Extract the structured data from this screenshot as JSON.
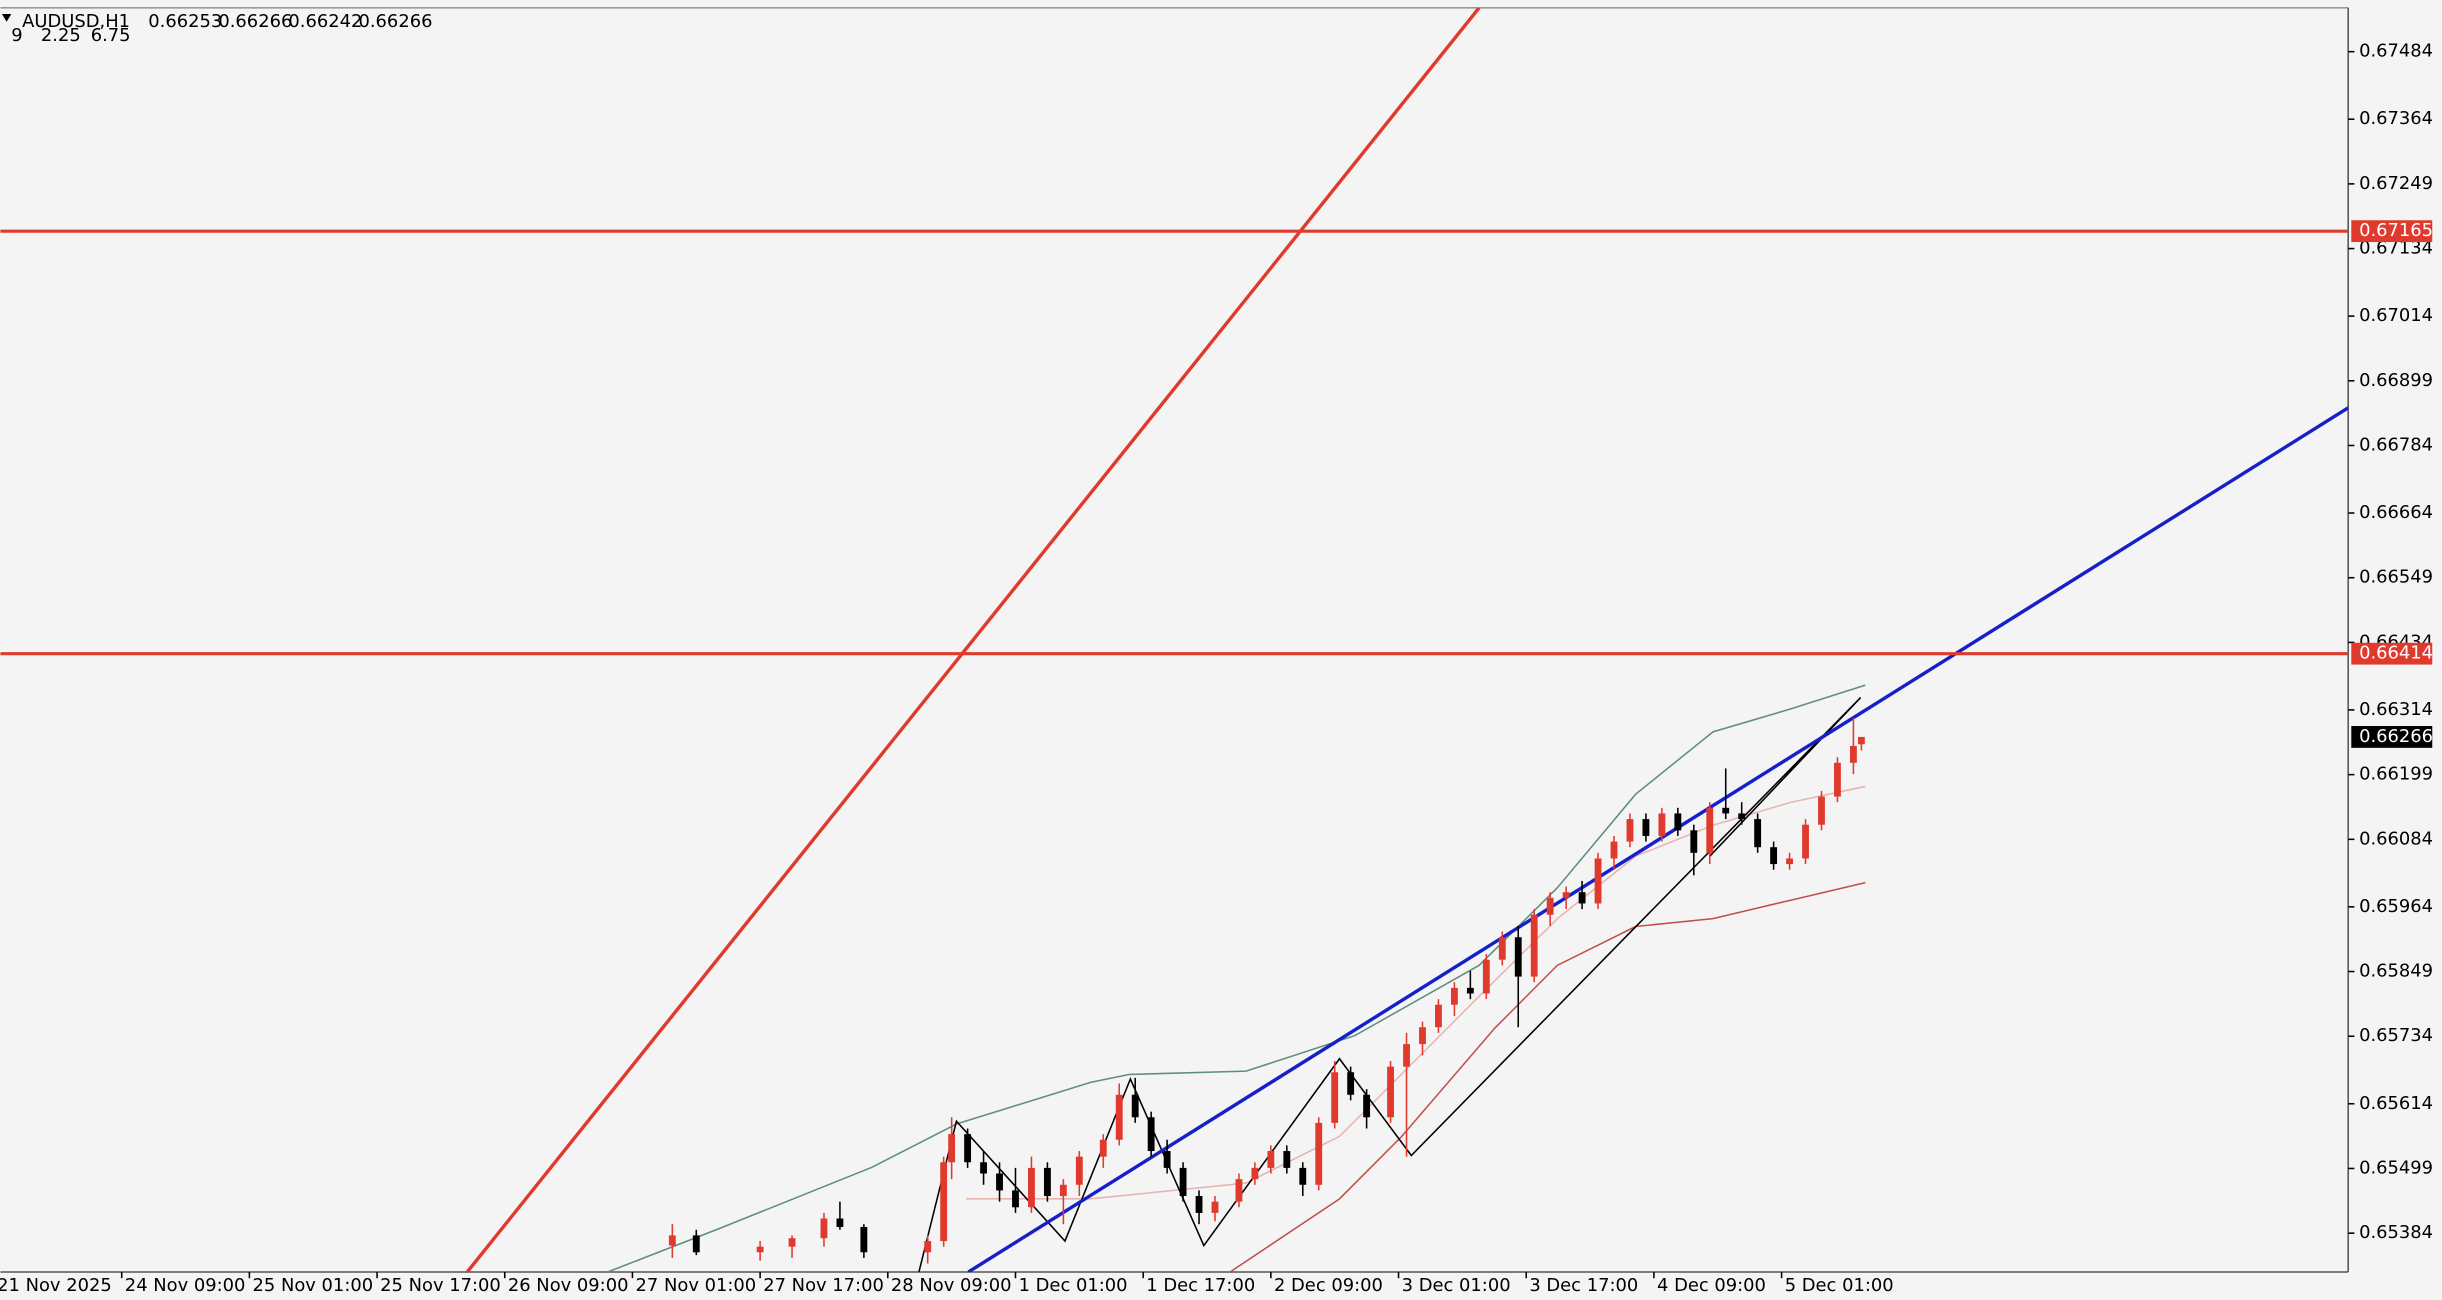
{
  "chart_data": {
    "type": "candlestick",
    "title": "AUDUSD,H1",
    "header_values": [
      0.66253,
      0.66266,
      0.66242,
      0.66266
    ],
    "indicator_params": [
      9,
      2.25,
      6.75
    ],
    "up_color": "#e03a2f",
    "down_color": "#000000",
    "x": [
      85,
      88,
      96,
      100,
      104,
      106,
      109,
      117,
      119,
      120,
      122,
      124,
      126,
      128,
      130,
      132,
      134,
      136,
      139,
      141,
      143,
      145,
      147,
      149,
      151,
      153,
      156,
      158,
      160,
      162,
      164,
      166,
      168,
      170,
      172,
      175,
      177,
      179,
      181,
      183,
      185,
      187,
      189,
      191,
      193,
      195,
      197,
      199,
      201,
      203,
      205,
      207,
      209,
      211,
      213,
      215,
      217,
      219,
      221,
      223,
      225,
      227,
      229,
      231,
      233,
      234
    ],
    "open": [
      0.65362,
      0.6538,
      0.6535,
      0.6536,
      0.65375,
      0.6541,
      0.65395,
      0.6535,
      0.6537,
      0.6551,
      0.6556,
      0.6551,
      0.6549,
      0.6546,
      0.6543,
      0.655,
      0.6545,
      0.6547,
      0.6552,
      0.6555,
      0.6563,
      0.6559,
      0.6553,
      0.655,
      0.6545,
      0.6542,
      0.6544,
      0.6548,
      0.655,
      0.6553,
      0.655,
      0.6547,
      0.6558,
      0.6567,
      0.6563,
      0.6559,
      0.6568,
      0.6572,
      0.6575,
      0.6579,
      0.6582,
      0.6581,
      0.6587,
      0.6591,
      0.6584,
      0.6595,
      0.6598,
      0.6599,
      0.6597,
      0.6605,
      0.6608,
      0.6612,
      0.6609,
      0.6613,
      0.661,
      0.6606,
      0.6614,
      0.6613,
      0.6612,
      0.6607,
      0.6604,
      0.6605,
      0.6611,
      0.6616,
      0.6622,
      0.66253
    ],
    "high": [
      0.654,
      0.6539,
      0.6537,
      0.6538,
      0.6542,
      0.6544,
      0.654,
      0.6538,
      0.6552,
      0.6559,
      0.6557,
      0.6553,
      0.6551,
      0.655,
      0.6552,
      0.6551,
      0.6548,
      0.6553,
      0.6556,
      0.6565,
      0.6566,
      0.656,
      0.6555,
      0.6551,
      0.6546,
      0.6545,
      0.6549,
      0.6551,
      0.6554,
      0.6554,
      0.6551,
      0.6559,
      0.6569,
      0.6568,
      0.6564,
      0.6569,
      0.6574,
      0.6576,
      0.658,
      0.6583,
      0.6585,
      0.6588,
      0.6592,
      0.6593,
      0.6596,
      0.6599,
      0.66,
      0.6601,
      0.6606,
      0.6609,
      0.6613,
      0.6613,
      0.6614,
      0.6614,
      0.6611,
      0.6615,
      0.6621,
      0.6615,
      0.6613,
      0.6608,
      0.6606,
      0.6612,
      0.6617,
      0.6623,
      0.663,
      0.66266
    ],
    "low": [
      0.6534,
      0.65345,
      0.65335,
      0.6534,
      0.6536,
      0.6539,
      0.6534,
      0.6533,
      0.6536,
      0.6548,
      0.655,
      0.6547,
      0.6544,
      0.6542,
      0.6542,
      0.6544,
      0.654,
      0.6545,
      0.655,
      0.6554,
      0.6558,
      0.6552,
      0.6549,
      0.6544,
      0.654,
      0.65405,
      0.6543,
      0.6547,
      0.6549,
      0.6549,
      0.6545,
      0.6546,
      0.6557,
      0.6562,
      0.6557,
      0.6558,
      0.6552,
      0.657,
      0.6574,
      0.6577,
      0.658,
      0.658,
      0.6586,
      0.6575,
      0.6583,
      0.6593,
      0.6596,
      0.6596,
      0.6596,
      0.6603,
      0.6607,
      0.6608,
      0.6608,
      0.6609,
      0.6602,
      0.6604,
      0.6612,
      0.6611,
      0.6606,
      0.6603,
      0.6603,
      0.6604,
      0.661,
      0.6615,
      0.662,
      0.66242
    ],
    "close": [
      0.6538,
      0.6535,
      0.6536,
      0.65375,
      0.6541,
      0.65395,
      0.6535,
      0.6537,
      0.6551,
      0.6556,
      0.6551,
      0.6549,
      0.6546,
      0.6543,
      0.655,
      0.6545,
      0.6547,
      0.6552,
      0.6555,
      0.6563,
      0.6559,
      0.6553,
      0.655,
      0.6545,
      0.6542,
      0.6544,
      0.6548,
      0.655,
      0.6553,
      0.655,
      0.6547,
      0.6558,
      0.6567,
      0.6563,
      0.6559,
      0.6568,
      0.6572,
      0.6575,
      0.6579,
      0.6582,
      0.6581,
      0.6587,
      0.6591,
      0.6584,
      0.6595,
      0.6598,
      0.6599,
      0.6597,
      0.6605,
      0.6608,
      0.6612,
      0.6609,
      0.6613,
      0.661,
      0.6606,
      0.6614,
      0.6613,
      0.6612,
      0.6607,
      0.6604,
      0.6605,
      0.6611,
      0.6616,
      0.6622,
      0.6625,
      0.66266
    ],
    "xlim": [
      0.8,
      295
    ],
    "ylim": [
      0.65315,
      0.67562
    ],
    "xticks": [
      {
        "value": 0,
        "label": "21 Nov 2025"
      },
      {
        "value": 16,
        "label": "24 Nov 09:00"
      },
      {
        "value": 32,
        "label": "25 Nov 01:00"
      },
      {
        "value": 48,
        "label": "25 Nov 17:00"
      },
      {
        "value": 64,
        "label": "26 Nov 09:00"
      },
      {
        "value": 80,
        "label": "27 Nov 01:00"
      },
      {
        "value": 96,
        "label": "27 Nov 17:00"
      },
      {
        "value": 112,
        "label": "28 Nov 09:00"
      },
      {
        "value": 128,
        "label": "1 Dec 01:00"
      },
      {
        "value": 144,
        "label": "1 Dec 17:00"
      },
      {
        "value": 160,
        "label": "2 Dec 09:00"
      },
      {
        "value": 176,
        "label": "3 Dec 01:00"
      },
      {
        "value": 192,
        "label": "3 Dec 17:00"
      },
      {
        "value": 208,
        "label": "4 Dec 09:00"
      },
      {
        "value": 224,
        "label": "5 Dec 01:00"
      }
    ],
    "yticks": [
      0.67484,
      0.67364,
      0.67249,
      0.67134,
      0.67014,
      0.66899,
      0.66784,
      0.66664,
      0.66549,
      0.66434,
      0.66314,
      0.66199,
      0.66084,
      0.65964,
      0.65849,
      0.65734,
      0.65614,
      0.65499,
      0.65384
    ],
    "levels": [
      {
        "value": 0.67165,
        "color": "#e03a2f"
      },
      {
        "value": 0.66414,
        "color": "#e03a2f"
      }
    ],
    "current_price": 0.66266,
    "series": [
      {
        "color": "#5f8f7a",
        "x": [
          76.9,
          90.5,
          110,
          120.6,
          137.4,
          142.2,
          156.9,
          170.5,
          186.1,
          195.9,
          205.7,
          215.4,
          225.2,
          234.5
        ],
        "values": [
          0.65315,
          0.6539,
          0.65501,
          0.65578,
          0.65652,
          0.65666,
          0.65672,
          0.65735,
          0.6586,
          0.65998,
          0.66164,
          0.66275,
          0.66316,
          0.66358
        ]
      },
      {
        "color": "#e8b4b0",
        "x": [
          121.8,
          137.4,
          156.9,
          168.6,
          186.1,
          195.9,
          205.7,
          215.4,
          225.2,
          234.5
        ],
        "values": [
          0.65445,
          0.65445,
          0.65473,
          0.65556,
          0.65805,
          0.65943,
          0.66054,
          0.66109,
          0.6615,
          0.66178
        ]
      },
      {
        "color": "#c0504d",
        "x": [
          154.9,
          168.6,
          176.4,
          188.1,
          195.9,
          205.7,
          215.4,
          225.2,
          234.5
        ],
        "values": [
          0.65315,
          0.65445,
          0.65556,
          0.65749,
          0.6586,
          0.65929,
          0.65943,
          0.65976,
          0.66007
        ]
      },
      {
        "color": "#000000",
        "x": [
          115.9,
          120.6,
          134.2,
          142.4,
          151.6,
          168.6,
          177.6,
          233.9,
          215
        ],
        "values": [
          0.65315,
          0.65583,
          0.6537,
          0.65658,
          0.65362,
          0.65694,
          0.65522,
          0.66336,
          0.66054
        ]
      }
    ],
    "trendlines": [
      {
        "color": "#e03a2f",
        "x": [
          59.3,
          186.1
        ],
        "values": [
          0.65315,
          0.67562
        ]
      },
      {
        "color": "#1520c8",
        "x": [
          122.1,
          295
        ],
        "values": [
          0.65315,
          0.66851
        ]
      }
    ]
  }
}
